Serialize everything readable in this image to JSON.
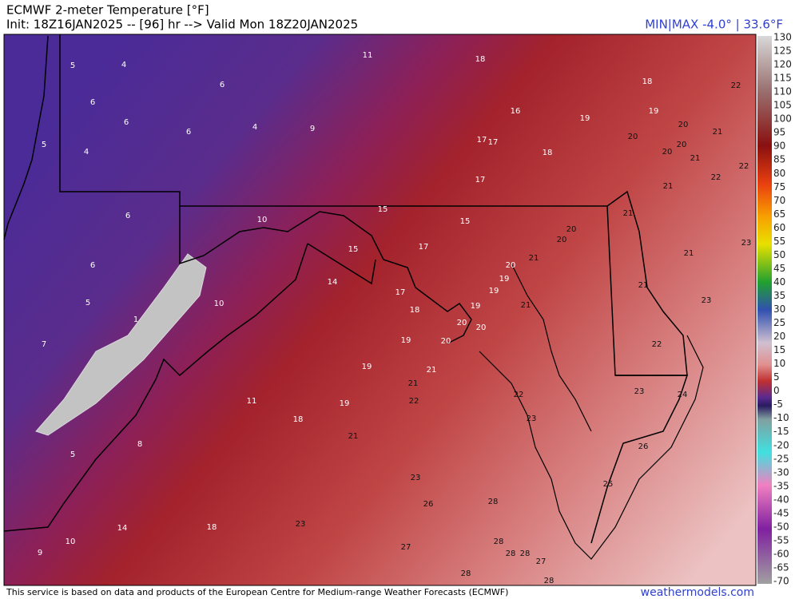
{
  "header": {
    "title": "ECMWF 2-meter Temperature [°F]",
    "subtitle": "Init: 18Z16JAN2025 -- [96] hr --> Valid Mon 18Z20JAN2025",
    "minmax": "MIN|MAX -4.0° | 33.6°F"
  },
  "colorbar": {
    "labels": [
      130,
      125,
      120,
      115,
      110,
      105,
      100,
      95,
      90,
      85,
      80,
      75,
      70,
      65,
      60,
      55,
      50,
      45,
      40,
      35,
      30,
      25,
      20,
      15,
      10,
      5,
      0,
      -5,
      -10,
      -15,
      -20,
      -25,
      -30,
      -35,
      -40,
      -45,
      -50,
      -55,
      -60,
      -65,
      -70
    ]
  },
  "stations": [
    5,
    4,
    11,
    18,
    18,
    22,
    6,
    6,
    16,
    19,
    19,
    6,
    20,
    6,
    4,
    9,
    21,
    5,
    17,
    17,
    20,
    4,
    18,
    20,
    20,
    21,
    22,
    22,
    17,
    21,
    15,
    6,
    10,
    21,
    15,
    20,
    20,
    23,
    15,
    17,
    21,
    21,
    20,
    6,
    19,
    14,
    21,
    17,
    19,
    5,
    10,
    23,
    19,
    18,
    21,
    1,
    20,
    20,
    7,
    19,
    20,
    22,
    19,
    21,
    21,
    22,
    23,
    24,
    11,
    19,
    22,
    18,
    23,
    21,
    8,
    26,
    5,
    23,
    25,
    26,
    28,
    14,
    18,
    23,
    10,
    27,
    28,
    9,
    28,
    28,
    27,
    28,
    28
  ],
  "footer": {
    "credit": "This service is based on data and products of the European Centre for Medium-range Weather Forecasts (ECMWF)",
    "site": "weathermodels.com"
  }
}
